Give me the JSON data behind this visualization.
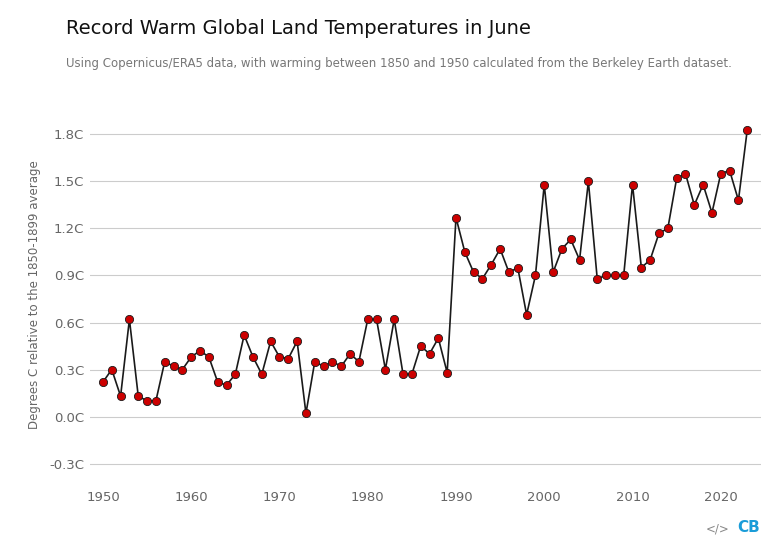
{
  "title": "Record Warm Global Land Temperatures in June",
  "subtitle": "Using Copernicus/ERA5 data, with warming between 1850 and 1950 calculated from the Berkeley Earth dataset.",
  "ylabel": "Degrees C relative to the 1850-1899 average",
  "background_color": "#ffffff",
  "line_color": "#1a1a1a",
  "dot_color": "#cc0000",
  "dot_edge_color": "#1a1a1a",
  "ylim": [
    -0.42,
    1.98
  ],
  "yticks": [
    -0.3,
    0.0,
    0.3,
    0.6,
    0.9,
    1.2,
    1.5,
    1.8
  ],
  "ytick_labels": [
    "-0.3C",
    "0.0C",
    "0.3C",
    "0.6C",
    "0.9C",
    "1.2C",
    "1.5C",
    "1.8C"
  ],
  "xlim": [
    1948.5,
    2024.5
  ],
  "xticks": [
    1950,
    1960,
    1970,
    1980,
    1990,
    2000,
    2010,
    2020
  ],
  "years": [
    1950,
    1951,
    1952,
    1953,
    1954,
    1955,
    1956,
    1957,
    1958,
    1959,
    1960,
    1961,
    1962,
    1963,
    1964,
    1965,
    1966,
    1967,
    1968,
    1969,
    1970,
    1971,
    1972,
    1973,
    1974,
    1975,
    1976,
    1977,
    1978,
    1979,
    1980,
    1981,
    1982,
    1983,
    1984,
    1985,
    1986,
    1987,
    1988,
    1989,
    1990,
    1991,
    1992,
    1993,
    1994,
    1995,
    1996,
    1997,
    1998,
    1999,
    2000,
    2001,
    2002,
    2003,
    2004,
    2005,
    2006,
    2007,
    2008,
    2009,
    2010,
    2011,
    2012,
    2013,
    2014,
    2015,
    2016,
    2017,
    2018,
    2019,
    2020,
    2021,
    2022,
    2023
  ],
  "values": [
    0.22,
    0.3,
    0.13,
    0.62,
    0.13,
    0.1,
    0.1,
    0.35,
    0.32,
    0.3,
    0.38,
    0.42,
    0.38,
    0.22,
    0.2,
    0.27,
    0.52,
    0.38,
    0.27,
    0.48,
    0.38,
    0.37,
    0.48,
    0.02,
    0.35,
    0.32,
    0.35,
    0.32,
    0.4,
    0.35,
    0.62,
    0.62,
    0.3,
    0.62,
    0.27,
    0.27,
    0.45,
    0.4,
    0.5,
    0.28,
    1.27,
    1.05,
    0.92,
    0.88,
    0.97,
    1.07,
    0.92,
    0.95,
    0.65,
    0.9,
    1.48,
    0.92,
    1.07,
    1.13,
    1.0,
    1.5,
    0.88,
    0.9,
    0.9,
    0.9,
    1.48,
    0.95,
    1.0,
    1.17,
    1.2,
    1.52,
    1.55,
    1.35,
    1.48,
    1.3,
    1.55,
    1.57,
    1.38,
    1.83
  ]
}
